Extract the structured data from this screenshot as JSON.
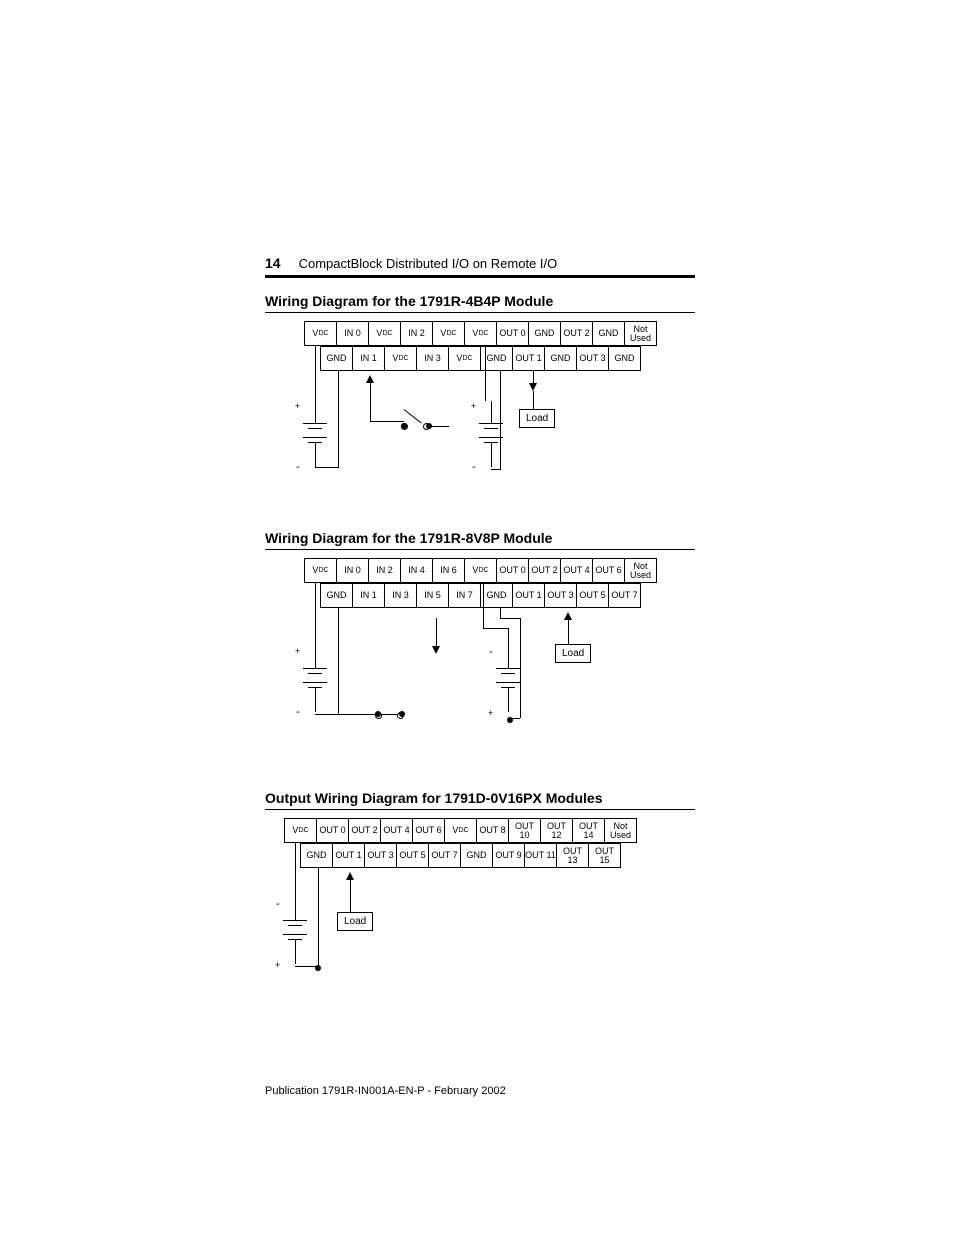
{
  "page_number": "14",
  "header_title": "CompactBlock Distributed I/O on Remote I/O",
  "footer": "Publication 1791R-IN001A-EN-P - February 2002",
  "colors": {
    "text": "#000000",
    "background": "#ffffff",
    "line": "#000000"
  },
  "typography": {
    "body_font": "Arial, Helvetica, sans-serif",
    "page_num_size_pt": 14,
    "header_title_size_pt": 13,
    "section_title_size_pt": 14,
    "cell_font_size_pt": 9,
    "footer_size_pt": 11
  },
  "section1": {
    "title": "Wiring Diagram for the 1791R-4B4P Module",
    "type": "wiring-diagram",
    "row_top": [
      "V_DC",
      "IN 0",
      "V_DC",
      "IN 2",
      "V_DC",
      "V_DC",
      "OUT 0",
      "GND",
      "OUT 2",
      "GND",
      "Not\nUsed"
    ],
    "row_bottom": [
      "GND",
      "IN 1",
      "V_DC",
      "IN 3",
      "V_DC",
      "GND",
      "OUT 1",
      "GND",
      "OUT 3",
      "GND"
    ],
    "load_label": "Load",
    "power_left": {
      "plus": "+",
      "minus": "-"
    },
    "power_right": {
      "plus": "+",
      "minus": "-"
    }
  },
  "section2": {
    "title": "Wiring Diagram for the 1791R-8V8P Module",
    "type": "wiring-diagram",
    "row_top": [
      "V_DC",
      "IN 0",
      "IN 2",
      "IN 4",
      "IN 6",
      "V_DC",
      "OUT 0",
      "OUT 2",
      "OUT 4",
      "OUT 6",
      "Not\nUsed"
    ],
    "row_bottom": [
      "GND",
      "IN 1",
      "IN 3",
      "IN 5",
      "IN 7",
      "GND",
      "OUT 1",
      "OUT 3",
      "OUT 5",
      "OUT 7"
    ],
    "load_label": "Load",
    "power_left": {
      "plus": "+",
      "minus": "-"
    },
    "power_right": {
      "plus": "-",
      "minus": "+"
    }
  },
  "section3": {
    "title": "Output Wiring Diagram for 1791D-0V16PX Modules",
    "type": "wiring-diagram",
    "row_top": [
      "V_DC",
      "OUT 0",
      "OUT 2",
      "OUT 4",
      "OUT 6",
      "V_DC",
      "OUT 8",
      "OUT 10",
      "OUT 12",
      "OUT 14",
      "Not\nUsed"
    ],
    "row_bottom": [
      "GND",
      "OUT 1",
      "OUT 3",
      "OUT 5",
      "OUT 7",
      "GND",
      "OUT 9",
      "OUT 11",
      "OUT 13",
      "OUT 15"
    ],
    "load_label": "Load",
    "power": {
      "plus": "+",
      "minus": "-"
    }
  }
}
